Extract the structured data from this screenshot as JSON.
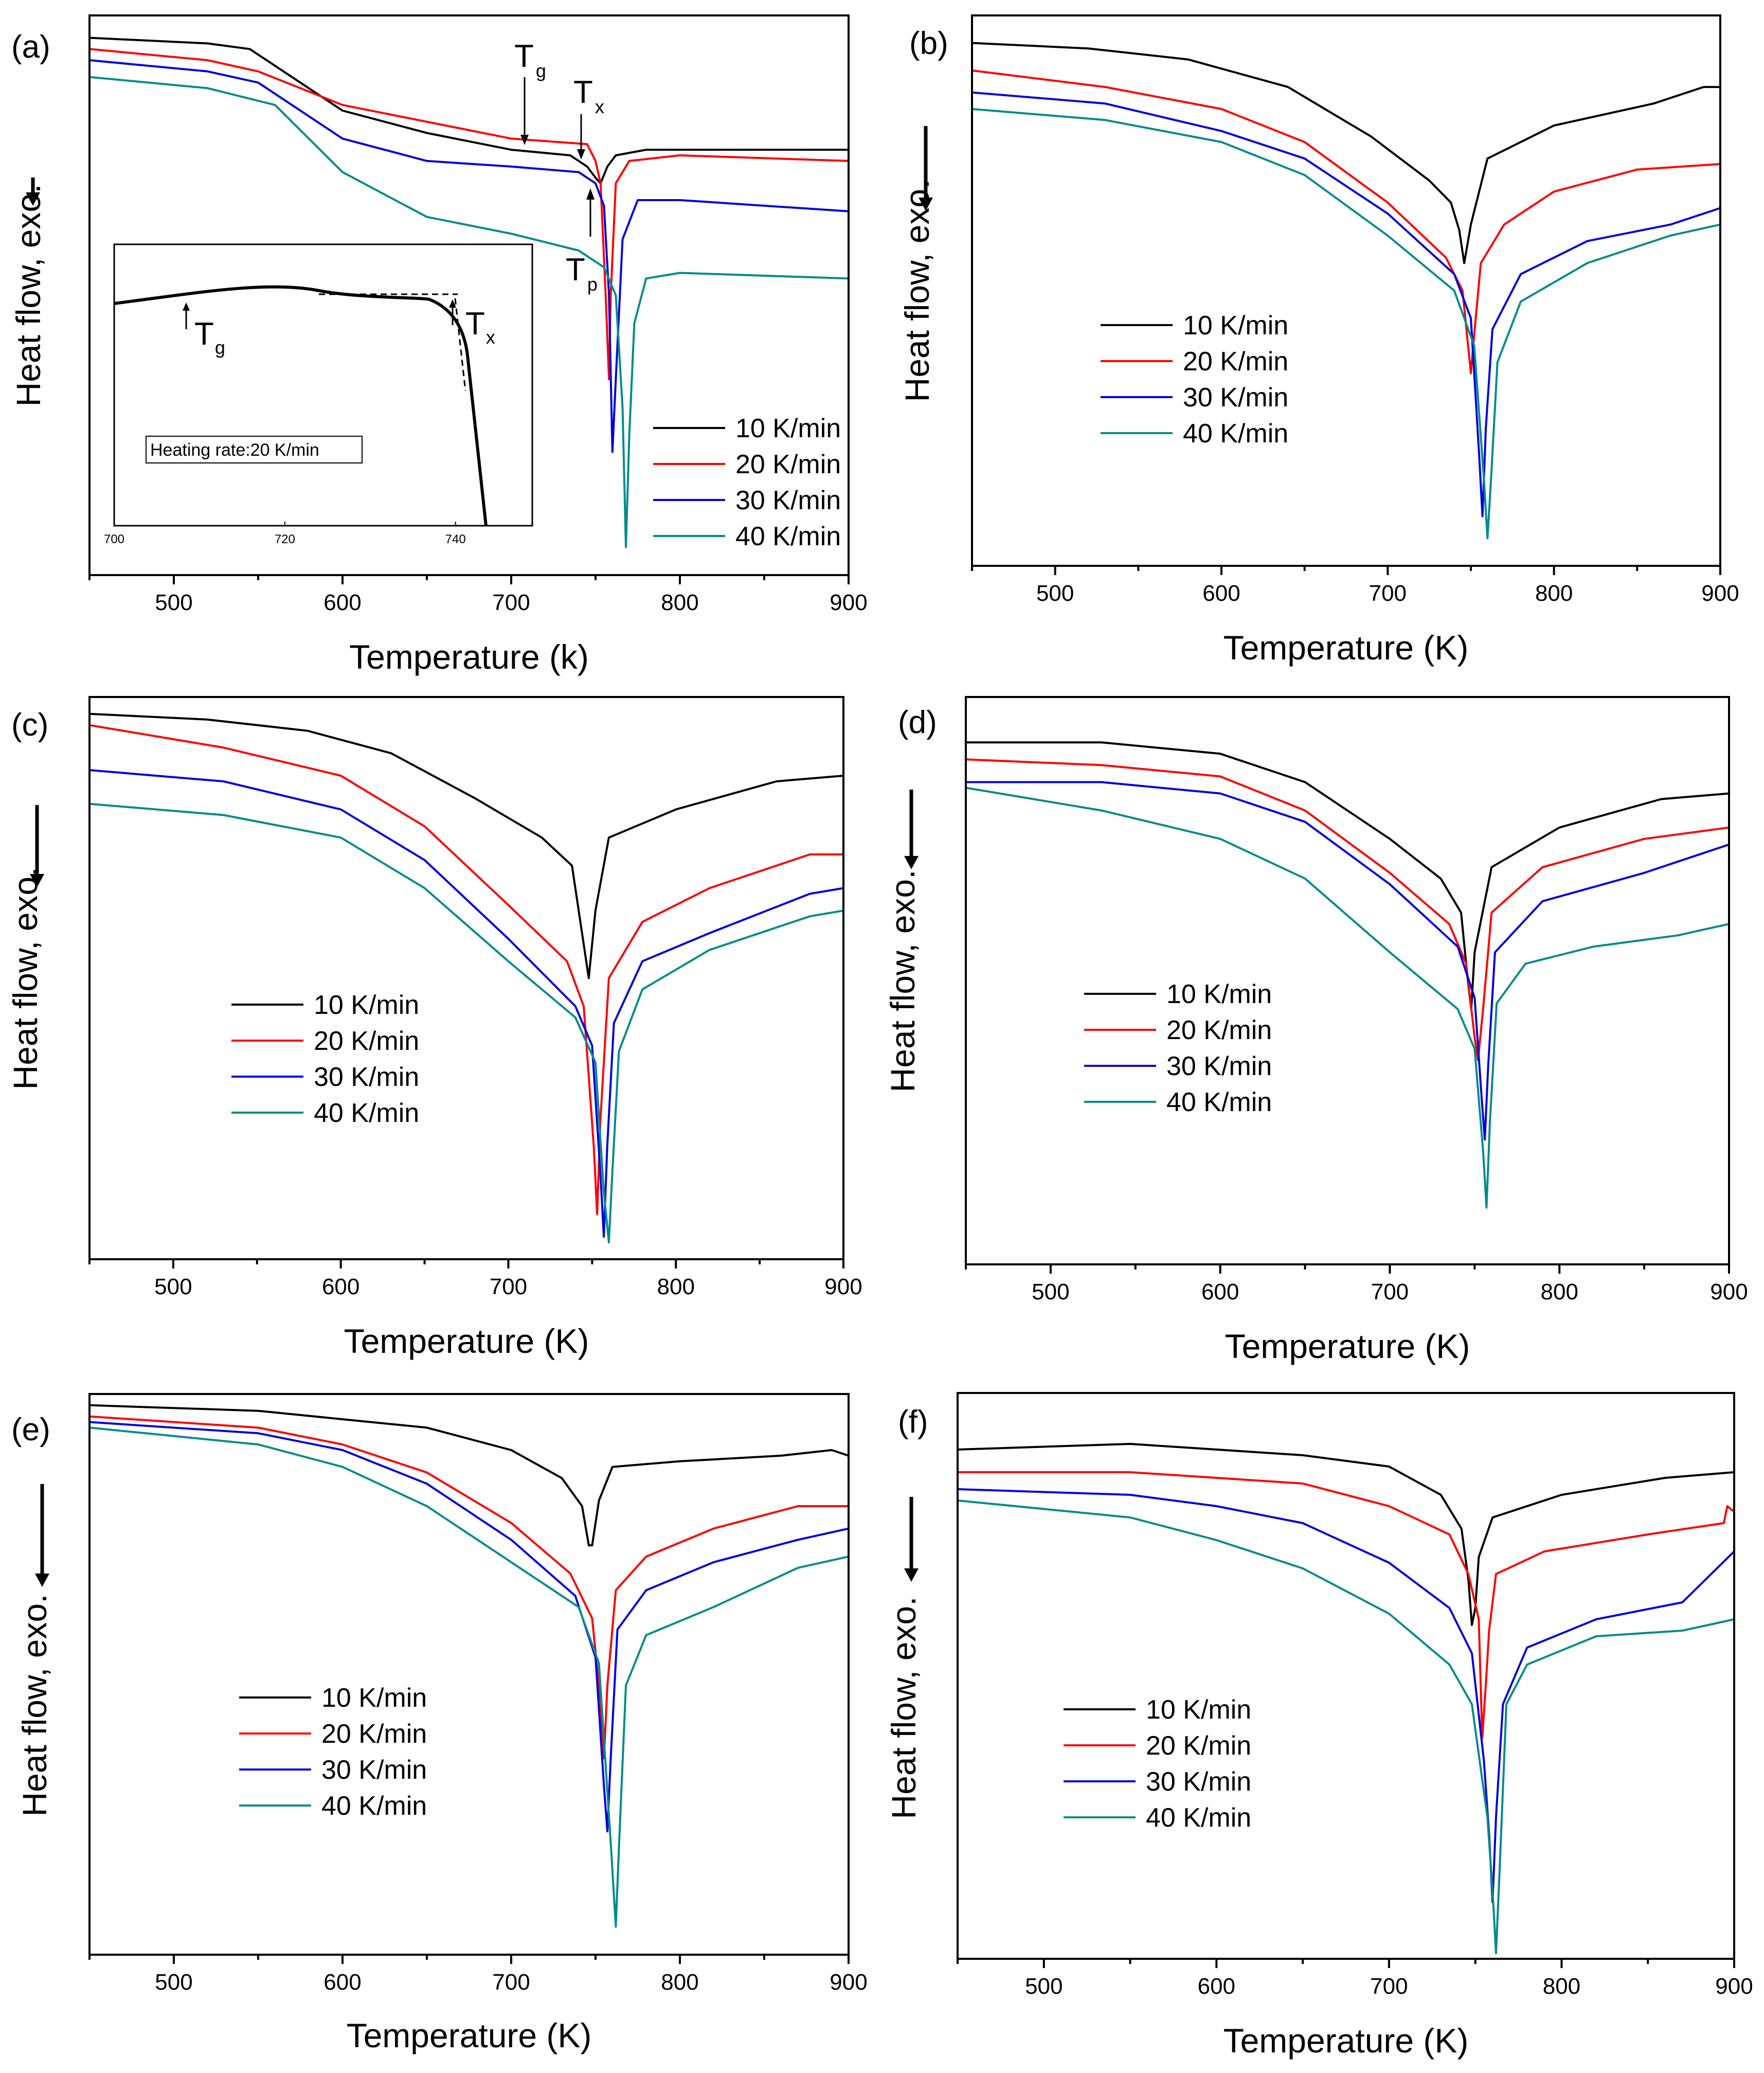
{
  "figure": {
    "colors": {
      "10 K/min": "#000000",
      "20 K/min": "#ff0000",
      "30 K/min": "#0000e0",
      "40 K/min": "#008b8b"
    },
    "ylabel": "Heat flow, exo.",
    "legend": [
      "10 K/min",
      "20 K/min",
      "30 K/min",
      "40 K/min"
    ]
  },
  "chart_data": [
    {
      "type": "line",
      "panel_label": "(a)",
      "xlabel": "Temperature (k)",
      "ylabel": "Heat flow, exo.",
      "xlim": [
        450,
        900
      ],
      "ylim": [
        0,
        100
      ],
      "xticks": [
        "500",
        "600",
        "700",
        "800",
        "900"
      ],
      "legend": [
        "10 K/min",
        "20 K/min",
        "30 K/min",
        "40 K/min"
      ],
      "annotations": {
        "tg": {
          "main": "T",
          "sub": "g"
        },
        "tx": {
          "main": "T",
          "sub": "x"
        },
        "tp": {
          "main": "T",
          "sub": "p"
        }
      },
      "inset": {
        "xlim": [
          700,
          749
        ],
        "xticks": [
          "700",
          "720",
          "740"
        ],
        "note": "Heating rate:20 K/min",
        "tg": {
          "main": "T",
          "sub": "g"
        },
        "tx": {
          "main": "T",
          "sub": "x"
        }
      },
      "series": [
        {
          "name": "10 K/min",
          "x": [
            450,
            520,
            545,
            560,
            600,
            650,
            700,
            735,
            745,
            750,
            753,
            757,
            762,
            780,
            900
          ],
          "y": [
            96,
            95,
            94,
            91,
            83,
            79,
            76,
            75,
            73,
            71,
            70,
            73,
            75,
            76,
            76
          ]
        },
        {
          "name": "20 K/min",
          "x": [
            450,
            520,
            550,
            600,
            650,
            700,
            745,
            750,
            753,
            756,
            758,
            759,
            762,
            770,
            800,
            900
          ],
          "y": [
            94,
            92,
            90,
            84,
            81,
            78,
            77,
            74,
            70,
            50,
            35,
            50,
            70,
            74,
            75,
            74
          ]
        },
        {
          "name": "30 K/min",
          "x": [
            450,
            520,
            550,
            600,
            650,
            700,
            740,
            750,
            755,
            758,
            760,
            762,
            766,
            775,
            800,
            900
          ],
          "y": [
            92,
            90,
            88,
            78,
            74,
            73,
            72,
            70,
            66,
            50,
            22,
            35,
            60,
            67,
            67,
            65
          ]
        },
        {
          "name": "40 K/min",
          "x": [
            450,
            520,
            560,
            600,
            650,
            700,
            740,
            755,
            762,
            766,
            768,
            770,
            773,
            780,
            800,
            900
          ],
          "y": [
            89,
            87,
            84,
            72,
            64,
            61,
            58,
            55,
            50,
            30,
            5,
            25,
            45,
            53,
            54,
            53
          ]
        }
      ]
    },
    {
      "type": "line",
      "panel_label": "(b)",
      "xlabel": "Temperature (K)",
      "ylabel": "Heat flow, exo.",
      "xlim": [
        450,
        900
      ],
      "ylim": [
        0,
        100
      ],
      "xticks": [
        "500",
        "600",
        "700",
        "800",
        "900"
      ],
      "legend": [
        "10 K/min",
        "20 K/min",
        "30 K/min",
        "40 K/min"
      ],
      "series": [
        {
          "name": "10 K/min",
          "x": [
            450,
            520,
            580,
            640,
            690,
            725,
            738,
            743,
            746,
            750,
            760,
            800,
            860,
            890,
            900
          ],
          "y": [
            95,
            94,
            92,
            87,
            78,
            70,
            66,
            61,
            55,
            62,
            74,
            80,
            84,
            87,
            87
          ]
        },
        {
          "name": "20 K/min",
          "x": [
            450,
            530,
            600,
            650,
            700,
            735,
            745,
            749,
            750,
            752,
            756,
            770,
            800,
            850,
            900
          ],
          "y": [
            90,
            87,
            83,
            77,
            66,
            56,
            50,
            38,
            35,
            42,
            55,
            62,
            68,
            72,
            73
          ]
        },
        {
          "name": "30 K/min",
          "x": [
            450,
            530,
            600,
            650,
            700,
            740,
            750,
            755,
            757,
            759,
            763,
            780,
            820,
            870,
            900
          ],
          "y": [
            86,
            84,
            79,
            74,
            64,
            53,
            45,
            20,
            9,
            25,
            43,
            53,
            59,
            62,
            65
          ]
        },
        {
          "name": "40 K/min",
          "x": [
            450,
            530,
            600,
            650,
            700,
            740,
            752,
            758,
            760,
            762,
            766,
            780,
            820,
            870,
            900
          ],
          "y": [
            83,
            81,
            77,
            71,
            60,
            50,
            40,
            15,
            5,
            15,
            37,
            48,
            55,
            60,
            62
          ]
        }
      ]
    },
    {
      "type": "line",
      "panel_label": "(c)",
      "xlabel": "Temperature (K)",
      "ylabel": "Heat flow, exo.",
      "xlim": [
        450,
        900
      ],
      "ylim": [
        0,
        100
      ],
      "xticks": [
        "500",
        "600",
        "700",
        "800",
        "900"
      ],
      "legend": [
        "10 K/min",
        "20 K/min",
        "30 K/min",
        "40 K/min"
      ],
      "series": [
        {
          "name": "10 K/min",
          "x": [
            450,
            520,
            580,
            630,
            680,
            720,
            738,
            745,
            748,
            752,
            760,
            800,
            860,
            900
          ],
          "y": [
            97,
            96,
            94,
            90,
            82,
            75,
            70,
            56,
            50,
            62,
            75,
            80,
            85,
            86
          ]
        },
        {
          "name": "20 K/min",
          "x": [
            450,
            530,
            600,
            650,
            700,
            735,
            745,
            751,
            753,
            755,
            760,
            780,
            820,
            880,
            900
          ],
          "y": [
            95,
            91,
            86,
            77,
            63,
            53,
            45,
            20,
            8,
            25,
            50,
            60,
            66,
            72,
            72
          ]
        },
        {
          "name": "30 K/min",
          "x": [
            450,
            530,
            600,
            650,
            700,
            740,
            750,
            755,
            757,
            759,
            763,
            780,
            820,
            880,
            900
          ],
          "y": [
            87,
            85,
            80,
            71,
            57,
            45,
            38,
            15,
            4,
            20,
            42,
            53,
            58,
            65,
            66
          ]
        },
        {
          "name": "40 K/min",
          "x": [
            450,
            530,
            600,
            650,
            700,
            740,
            752,
            757,
            760,
            762,
            766,
            780,
            820,
            880,
            900
          ],
          "y": [
            81,
            79,
            75,
            66,
            53,
            43,
            35,
            12,
            3,
            15,
            37,
            48,
            55,
            61,
            62
          ]
        }
      ]
    },
    {
      "type": "line",
      "panel_label": "(d)",
      "xlabel": "Temperature (K)",
      "ylabel": "Heat flow, exo.",
      "xlim": [
        450,
        900
      ],
      "ylim": [
        0,
        100
      ],
      "xticks": [
        "500",
        "600",
        "700",
        "800",
        "900"
      ],
      "legend": [
        "10 K/min",
        "20 K/min",
        "30 K/min",
        "40 K/min"
      ],
      "series": [
        {
          "name": "10 K/min",
          "x": [
            450,
            530,
            600,
            650,
            700,
            730,
            742,
            746,
            748,
            750,
            760,
            800,
            860,
            900
          ],
          "y": [
            92,
            92,
            90,
            85,
            75,
            68,
            62,
            50,
            45,
            55,
            70,
            77,
            82,
            83
          ]
        },
        {
          "name": "20 K/min",
          "x": [
            450,
            530,
            600,
            650,
            700,
            735,
            745,
            750,
            752,
            755,
            760,
            790,
            850,
            900
          ],
          "y": [
            89,
            88,
            86,
            80,
            69,
            60,
            53,
            40,
            36,
            45,
            62,
            70,
            75,
            77
          ]
        },
        {
          "name": "30 K/min",
          "x": [
            450,
            530,
            600,
            650,
            700,
            740,
            750,
            754,
            756,
            758,
            762,
            790,
            850,
            900
          ],
          "y": [
            85,
            85,
            83,
            78,
            67,
            56,
            47,
            30,
            22,
            35,
            55,
            64,
            69,
            74
          ]
        },
        {
          "name": "40 K/min",
          "x": [
            450,
            530,
            600,
            650,
            700,
            740,
            750,
            755,
            757,
            759,
            763,
            780,
            820,
            870,
            900
          ],
          "y": [
            84,
            80,
            75,
            68,
            55,
            45,
            38,
            20,
            10,
            25,
            46,
            53,
            56,
            58,
            60
          ]
        }
      ]
    },
    {
      "type": "line",
      "panel_label": "(e)",
      "xlabel": "Temperature (K)",
      "ylabel": "Heat flow, exo.",
      "xlim": [
        450,
        900
      ],
      "ylim": [
        0,
        100
      ],
      "xticks": [
        "500",
        "600",
        "700",
        "800",
        "900"
      ],
      "legend": [
        "10 K/min",
        "20 K/min",
        "30 K/min",
        "40 K/min"
      ],
      "series": [
        {
          "name": "10 K/min",
          "x": [
            450,
            550,
            650,
            700,
            730,
            742,
            746,
            748,
            752,
            760,
            800,
            860,
            890,
            900
          ],
          "y": [
            98,
            97,
            94,
            90,
            85,
            80,
            73,
            73,
            81,
            87,
            88,
            89,
            90,
            89
          ]
        },
        {
          "name": "20 K/min",
          "x": [
            450,
            550,
            600,
            650,
            700,
            735,
            748,
            753,
            755,
            757,
            762,
            780,
            820,
            870,
            900
          ],
          "y": [
            96,
            94,
            91,
            86,
            77,
            68,
            60,
            45,
            35,
            48,
            65,
            71,
            76,
            80,
            80
          ]
        },
        {
          "name": "30 K/min",
          "x": [
            450,
            550,
            600,
            650,
            700,
            738,
            750,
            755,
            757,
            759,
            763,
            780,
            820,
            870,
            900
          ],
          "y": [
            95,
            93,
            90,
            84,
            74,
            64,
            53,
            30,
            22,
            35,
            58,
            65,
            70,
            74,
            76
          ]
        },
        {
          "name": "40 K/min",
          "x": [
            450,
            550,
            600,
            650,
            700,
            740,
            752,
            759,
            762,
            764,
            768,
            780,
            820,
            870,
            900
          ],
          "y": [
            94,
            91,
            87,
            80,
            70,
            62,
            52,
            20,
            5,
            20,
            48,
            57,
            62,
            69,
            71
          ]
        }
      ]
    },
    {
      "type": "line",
      "panel_label": "(f)",
      "xlabel": "Temperature (K)",
      "ylabel": "Heat flow, exo.",
      "xlim": [
        450,
        900
      ],
      "ylim": [
        0,
        100
      ],
      "xticks": [
        "500",
        "600",
        "700",
        "800",
        "900"
      ],
      "legend": [
        "10 K/min",
        "20 K/min",
        "30 K/min",
        "40 K/min"
      ],
      "series": [
        {
          "name": "10 K/min",
          "x": [
            450,
            550,
            650,
            700,
            730,
            742,
            746,
            748,
            750,
            752,
            760,
            800,
            860,
            900
          ],
          "y": [
            90,
            91,
            89,
            87,
            82,
            76,
            67,
            59,
            62,
            71,
            78,
            82,
            85,
            86
          ]
        },
        {
          "name": "20 K/min",
          "x": [
            450,
            550,
            650,
            700,
            735,
            746,
            752,
            754,
            756,
            758,
            762,
            790,
            850,
            894,
            896,
            900
          ],
          "y": [
            86,
            86,
            84,
            80,
            75,
            68,
            60,
            39,
            48,
            58,
            68,
            72,
            75,
            77,
            80,
            79
          ]
        },
        {
          "name": "30 K/min",
          "x": [
            450,
            550,
            600,
            650,
            700,
            735,
            748,
            755,
            758,
            760,
            762,
            766,
            780,
            820,
            870,
            900
          ],
          "y": [
            83,
            82,
            80,
            77,
            70,
            62,
            54,
            35,
            22,
            10,
            25,
            45,
            55,
            60,
            63,
            72
          ]
        },
        {
          "name": "40 K/min",
          "x": [
            450,
            550,
            600,
            650,
            700,
            735,
            748,
            757,
            760,
            762,
            764,
            768,
            780,
            820,
            870,
            900
          ],
          "y": [
            81,
            78,
            74,
            69,
            61,
            52,
            45,
            25,
            12,
            1,
            15,
            45,
            52,
            57,
            58,
            60
          ]
        }
      ]
    }
  ]
}
